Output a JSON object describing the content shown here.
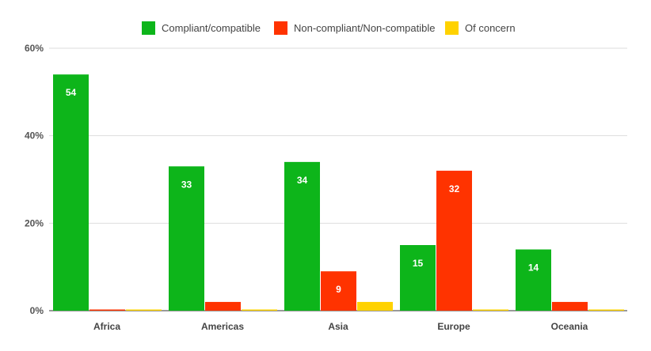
{
  "chart_data": {
    "type": "bar",
    "categories": [
      "Africa",
      "Americas",
      "Asia",
      "Europe",
      "Oceania"
    ],
    "series": [
      {
        "name": "Compliant/compatible",
        "color": "#0DB51A",
        "values": [
          54,
          33,
          34,
          15,
          14
        ]
      },
      {
        "name": "Non-compliant/Non-compatible",
        "color": "#FF3300",
        "values": [
          0,
          2,
          9,
          32,
          2
        ]
      },
      {
        "name": "Of concern",
        "color": "#FFD200",
        "values": [
          0,
          0,
          2,
          0,
          0
        ]
      }
    ],
    "data_labels": [
      [
        "54",
        "33",
        "34",
        "15",
        "14"
      ],
      [
        "",
        "2",
        "9",
        "32",
        "2"
      ],
      [
        "",
        "",
        "2",
        "",
        ""
      ]
    ],
    "ylim": [
      0,
      60
    ],
    "yticks": [
      0,
      20,
      40,
      60
    ],
    "ytick_labels": [
      "0%",
      "20%",
      "40%",
      "60%"
    ],
    "grid": true,
    "legend_position": "top-center",
    "xlabel": "",
    "ylabel": ""
  }
}
